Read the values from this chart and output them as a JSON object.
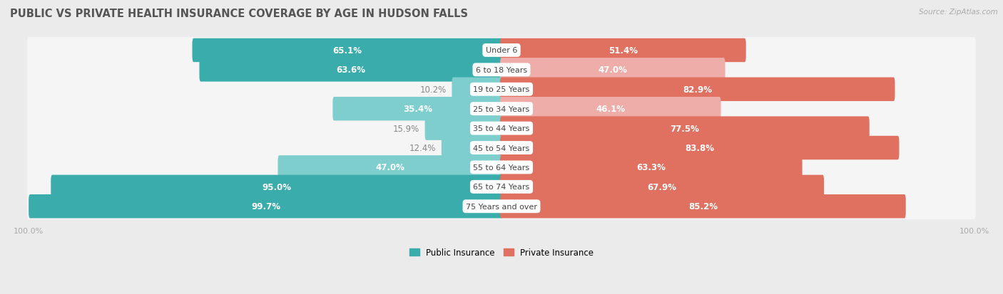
{
  "title": "PUBLIC VS PRIVATE HEALTH INSURANCE COVERAGE BY AGE IN HUDSON FALLS",
  "source": "Source: ZipAtlas.com",
  "categories": [
    "Under 6",
    "6 to 18 Years",
    "19 to 25 Years",
    "25 to 34 Years",
    "35 to 44 Years",
    "45 to 54 Years",
    "55 to 64 Years",
    "65 to 74 Years",
    "75 Years and over"
  ],
  "public_values": [
    65.1,
    63.6,
    10.2,
    35.4,
    15.9,
    12.4,
    47.0,
    95.0,
    99.7
  ],
  "private_values": [
    51.4,
    47.0,
    82.9,
    46.1,
    77.5,
    83.8,
    63.3,
    67.9,
    85.2
  ],
  "public_color_dark": "#3aacac",
  "public_color_light": "#7ecece",
  "private_color_dark": "#e07060",
  "private_color_light": "#eeada8",
  "bg_color": "#ebebeb",
  "row_bg_color": "#f5f5f5",
  "title_color": "#555555",
  "label_white": "#ffffff",
  "label_dark": "#888888",
  "axis_label_color": "#aaaaaa",
  "max_value": 100.0,
  "bar_height": 0.62,
  "title_fontsize": 10.5,
  "label_fontsize": 8.5,
  "category_fontsize": 8.0,
  "axis_fontsize": 8.0,
  "threshold": 50.0
}
